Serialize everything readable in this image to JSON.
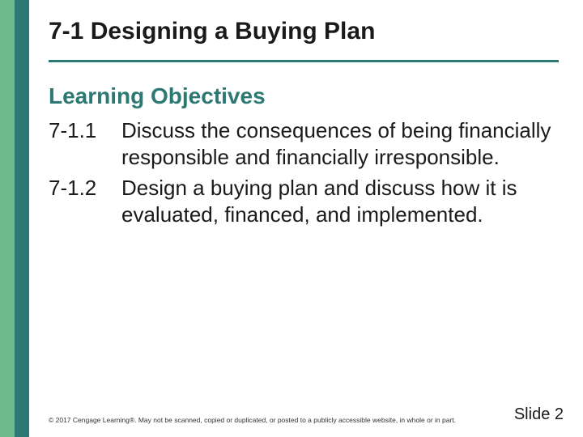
{
  "colors": {
    "stripe1": "#6fb98f",
    "stripe2": "#2c7873",
    "rule": "#2c7873",
    "subheading": "#2c7873",
    "text": "#1a1a1a"
  },
  "title": "7-1 Designing a Buying Plan",
  "subheading": "Learning Objectives",
  "objectives": [
    {
      "num": "7-1.1",
      "text": "Discuss the consequences of being financially responsible and financially irresponsible."
    },
    {
      "num": "7-1.2",
      "text": "Design a buying plan and discuss how it is evaluated, financed, and implemented."
    }
  ],
  "copyright": "© 2017 Cengage Learning®. May not be scanned, copied or duplicated, or posted to a publicly accessible website, in whole or in part.",
  "slide_label": "Slide 2"
}
